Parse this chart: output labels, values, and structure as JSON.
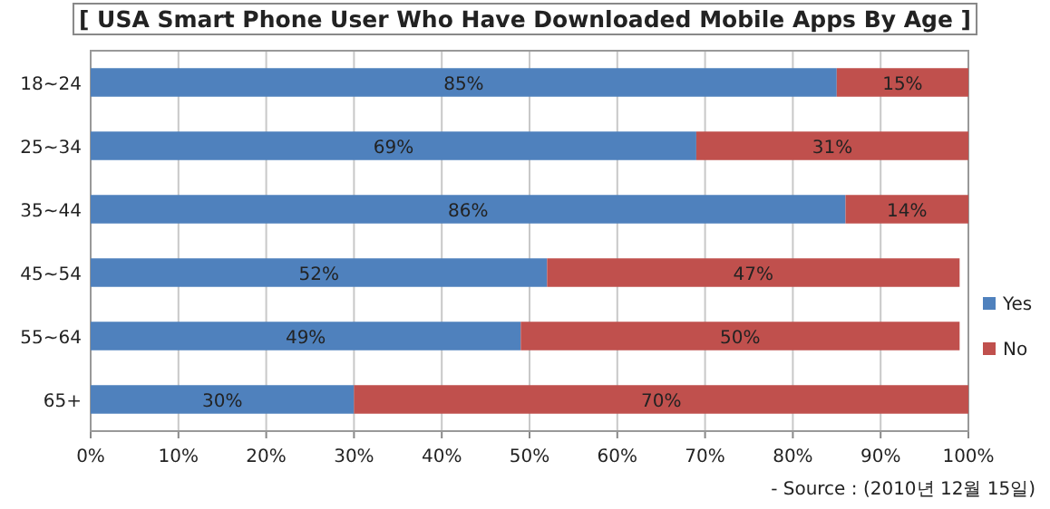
{
  "chart_data": {
    "type": "bar",
    "orientation": "horizontal",
    "stacked": true,
    "title": "[ USA Smart Phone User Who Have Downloaded Mobile Apps By Age ]",
    "categories": [
      "18~24",
      "25~34",
      "35~44",
      "45~54",
      "55~64",
      "65+"
    ],
    "series": [
      {
        "name": "Yes",
        "color": "#4f81bd",
        "values": [
          85,
          69,
          86,
          52,
          49,
          30
        ],
        "value_labels": [
          "85%",
          "69%",
          "86%",
          "52%",
          "49%",
          "30%"
        ]
      },
      {
        "name": "No",
        "color": "#c0504d",
        "values": [
          15,
          31,
          14,
          47,
          50,
          70
        ],
        "value_labels": [
          "15%",
          "31%",
          "14%",
          "47%",
          "50%",
          "70%"
        ]
      }
    ],
    "xlim": [
      0,
      100
    ],
    "xticks": [
      {
        "value": 0,
        "label": "0%"
      },
      {
        "value": 10,
        "label": "10%"
      },
      {
        "value": 20,
        "label": "20%"
      },
      {
        "value": 30,
        "label": "30%"
      },
      {
        "value": 40,
        "label": "40%"
      },
      {
        "value": 50,
        "label": "50%"
      },
      {
        "value": 60,
        "label": "60%"
      },
      {
        "value": 70,
        "label": "70%"
      },
      {
        "value": 80,
        "label": "80%"
      },
      {
        "value": 90,
        "label": "90%"
      },
      {
        "value": 100,
        "label": "100%"
      }
    ],
    "grid": "x",
    "legend": "right",
    "annotations": [
      "- Source : (2010년 12월 15일)"
    ]
  }
}
